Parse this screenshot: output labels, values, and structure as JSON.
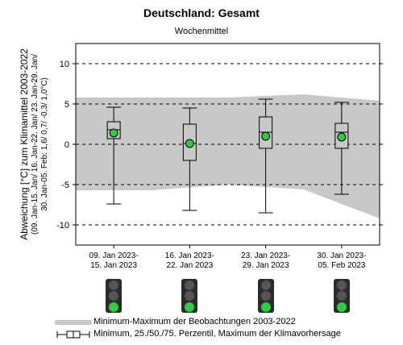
{
  "header": {
    "title": "Deutschland: Gesamt",
    "subtitle": "Wochenmittel"
  },
  "chart_data": {
    "type": "box",
    "title": "Deutschland: Gesamt",
    "subtitle": "Wochenmittel",
    "ylabel_lines": [
      "Abweichung [°C] zum Klimamittel 2003-2022",
      "(09. Jan-15. Jan/ 16. Jan-22. Jan/ 23. Jan-29. Jan/",
      "30. Jan-05. Feb: 1,6/ 0,7/ -0,3/ 1,0°C)"
    ],
    "ylim": [
      -12.5,
      12.5
    ],
    "yticks": [
      -10,
      -5,
      0,
      5,
      10
    ],
    "ytick_labels": [
      "-10",
      "-5",
      "0",
      "5",
      "10"
    ],
    "grid": "dashed horizontal",
    "categories": [
      [
        "09. Jan 2023-",
        "15. Jan 2023"
      ],
      [
        "16. Jan 2023-",
        "22. Jan 2023"
      ],
      [
        "23. Jan 2023-",
        "29. Jan 2023"
      ],
      [
        "30. Jan 2023-",
        "05. Feb 2023"
      ]
    ],
    "boxes": [
      {
        "min": -7.4,
        "q25": 0.7,
        "median": 1.8,
        "q75": 2.8,
        "max": 4.6,
        "mean": 1.4
      },
      {
        "min": -8.2,
        "q25": -2.0,
        "median": 0.1,
        "q75": 2.5,
        "max": 4.5,
        "mean": 0.1
      },
      {
        "min": -8.5,
        "q25": -0.5,
        "median": 1.5,
        "q75": 3.4,
        "max": 5.6,
        "mean": 1.0
      },
      {
        "min": -6.2,
        "q25": -0.5,
        "median": 1.5,
        "q75": 2.6,
        "max": 5.2,
        "mean": 0.9
      }
    ],
    "obs_band": {
      "x": [
        -0.5,
        0.5,
        1.5,
        2.5,
        3.5
      ],
      "upper": [
        5.8,
        5.8,
        5.8,
        6.2,
        5.4
      ],
      "lower": [
        -5.7,
        -5.7,
        -5.0,
        -5.6,
        -9.2
      ],
      "band_x_note": "",
      "color": "#c8c8c8"
    },
    "box_color": "#c8c8c8",
    "mean_marker_color": "#2ecc40"
  },
  "traffic_lights": [
    {
      "active": "green"
    },
    {
      "active": "green"
    },
    {
      "active": "green"
    },
    {
      "active": "green"
    }
  ],
  "traffic_light_colors": {
    "off": "#555555",
    "green": "#2ecc40"
  },
  "legend": {
    "items": [
      {
        "symbol": "band",
        "label": "Minimum-Maximum der Beobachtungen 2003-2022"
      },
      {
        "symbol": "box",
        "label": "Minimum, 25./50./75. Perzentil, Maximum der Klimavorhersage"
      }
    ]
  }
}
